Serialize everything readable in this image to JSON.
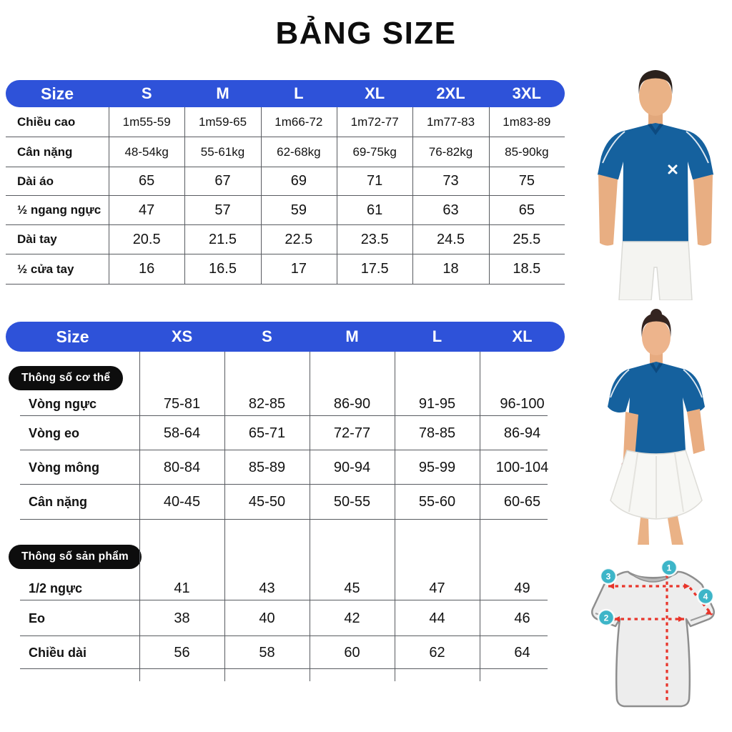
{
  "title": "BẢNG SIZE",
  "colors": {
    "header_blue": "#2e52d9",
    "badge_black": "#0d0d0d",
    "table_line_gray": "#585b60",
    "shirt_blue": "#15619e",
    "marker_teal": "#3db5c8",
    "measure_red": "#e8352b"
  },
  "men_table": {
    "header": [
      "Size",
      "S",
      "M",
      "L",
      "XL",
      "2XL",
      "3XL"
    ],
    "rows": [
      {
        "label": "Chiều cao",
        "values": [
          "1m55-59",
          "1m59-65",
          "1m66-72",
          "1m72-77",
          "1m77-83",
          "1m83-89"
        ]
      },
      {
        "label": "Cân nặng",
        "values": [
          "48-54kg",
          "55-61kg",
          "62-68kg",
          "69-75kg",
          "76-82kg",
          "85-90kg"
        ]
      },
      {
        "label": "Dài áo",
        "values": [
          "65",
          "67",
          "69",
          "71",
          "73",
          "75"
        ]
      },
      {
        "label": "½ ngang ngực",
        "values": [
          "47",
          "57",
          "59",
          "61",
          "63",
          "65"
        ]
      },
      {
        "label": "Dài tay",
        "values": [
          "20.5",
          "21.5",
          "22.5",
          "23.5",
          "24.5",
          "25.5"
        ]
      },
      {
        "label": "½ cửa tay",
        "values": [
          "16",
          "16.5",
          "17",
          "17.5",
          "18",
          "18.5"
        ]
      }
    ]
  },
  "women_table": {
    "header": [
      "Size",
      "XS",
      "S",
      "M",
      "L",
      "XL"
    ],
    "sections": [
      {
        "badge": "Thông số cơ thể",
        "rows": [
          {
            "label": "Vòng ngực",
            "values": [
              "75-81",
              "82-85",
              "86-90",
              "91-95",
              "96-100"
            ]
          },
          {
            "label": "Vòng eo",
            "values": [
              "58-64",
              "65-71",
              "72-77",
              "78-85",
              "86-94"
            ]
          },
          {
            "label": "Vòng mông",
            "values": [
              "80-84",
              "85-89",
              "90-94",
              "95-99",
              "100-104"
            ]
          },
          {
            "label": "Cân nặng",
            "values": [
              "40-45",
              "45-50",
              "50-55",
              "55-60",
              "60-65"
            ]
          }
        ]
      },
      {
        "badge": "Thông số sản phẩm",
        "rows": [
          {
            "label": "1/2 ngực",
            "values": [
              "41",
              "43",
              "45",
              "47",
              "49"
            ]
          },
          {
            "label": "Eo",
            "values": [
              "38",
              "40",
              "42",
              "44",
              "46"
            ]
          },
          {
            "label": "Chiều dài",
            "values": [
              "56",
              "58",
              "60",
              "62",
              "64"
            ]
          }
        ]
      }
    ]
  },
  "size_diagram": {
    "markers": [
      "1",
      "2",
      "3",
      "4"
    ]
  }
}
